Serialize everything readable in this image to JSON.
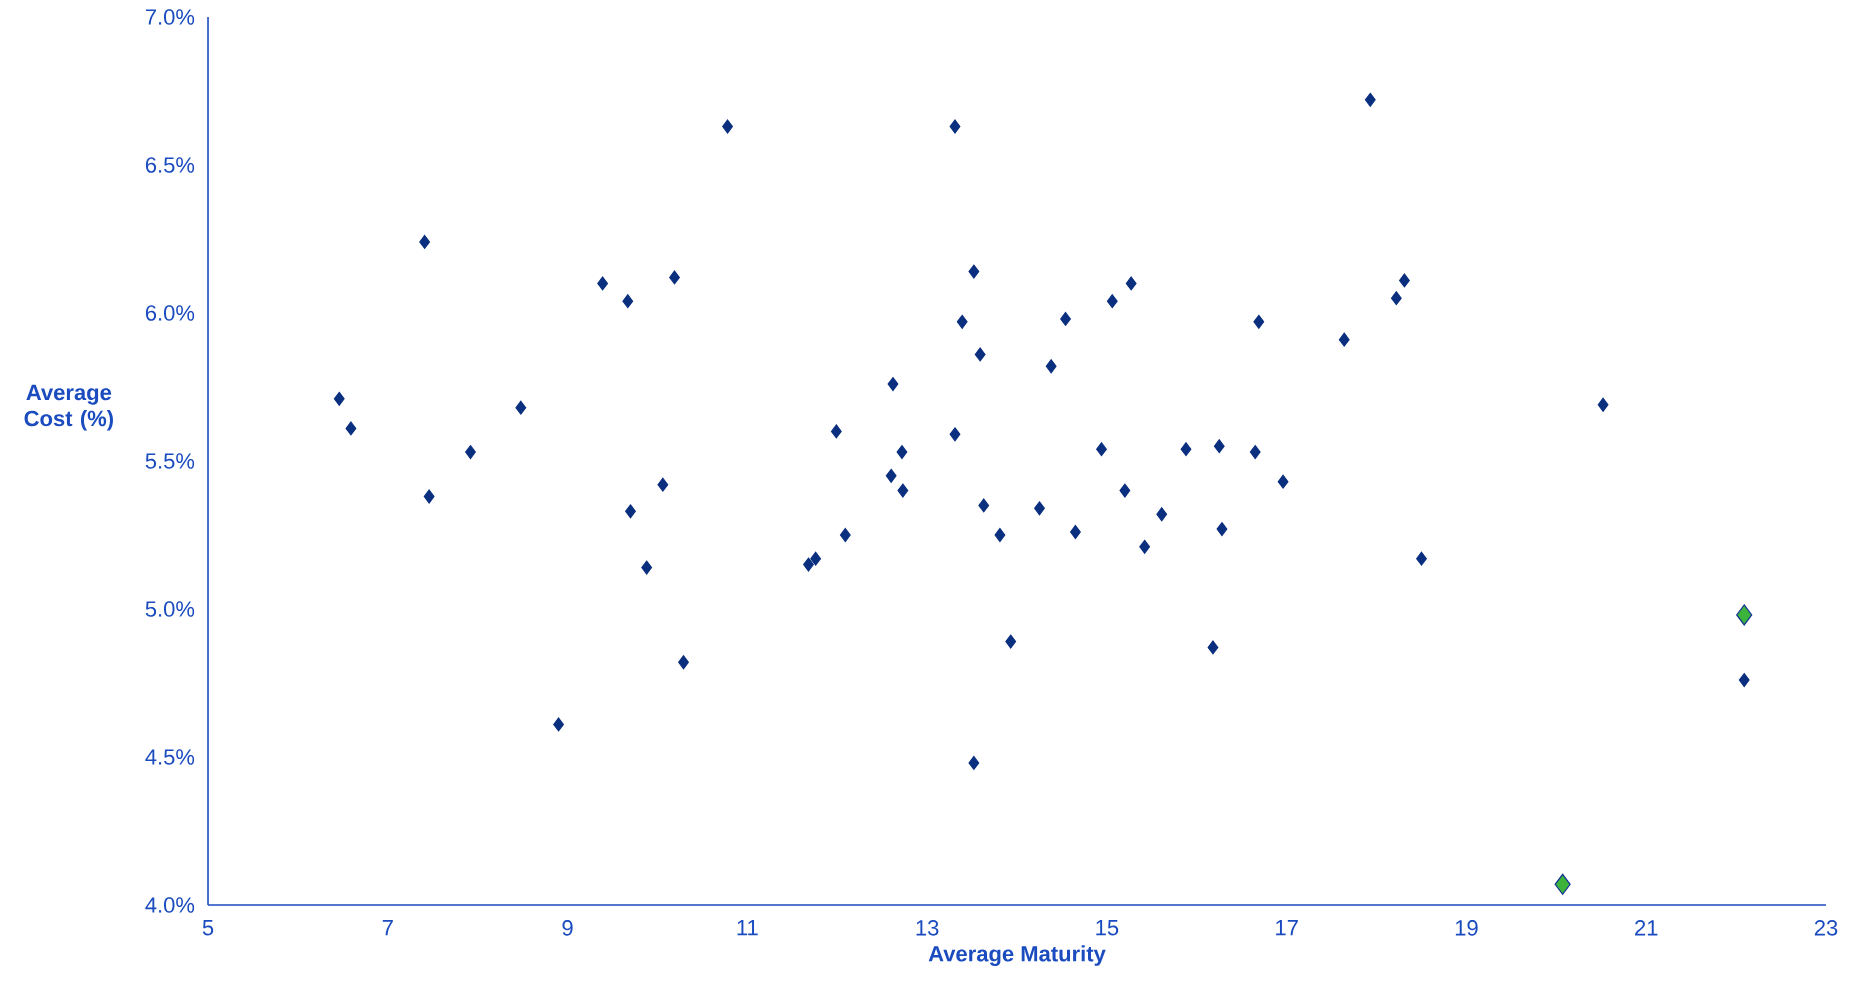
{
  "chart_data": {
    "type": "scatter",
    "xlabel": "Average Maturity",
    "ylabel": "Average Cost (%)",
    "marker": "diamond",
    "xlim": [
      5,
      23
    ],
    "ylim": [
      4.0,
      7.0
    ],
    "xticks": [
      5,
      7,
      9,
      11,
      13,
      15,
      17,
      19,
      21,
      23
    ],
    "yticks": [
      {
        "value": 4.0,
        "label": "4.0%"
      },
      {
        "value": 4.5,
        "label": "4.5%"
      },
      {
        "value": 5.0,
        "label": "5.0%"
      },
      {
        "value": 5.5,
        "label": "5.5%"
      },
      {
        "value": 6.0,
        "label": "6.0%"
      },
      {
        "value": 6.5,
        "label": "6.5%"
      },
      {
        "value": 7.0,
        "label": "7.0%"
      }
    ],
    "series": [
      {
        "color": "#0a2f7f",
        "x": [
          6.46,
          6.59,
          7.41,
          7.46,
          7.92,
          8.48,
          8.9,
          9.39,
          9.67,
          9.7,
          9.88,
          10.06,
          10.19,
          10.29,
          10.78,
          11.68,
          11.76,
          11.99,
          12.09,
          12.6,
          12.62,
          12.72,
          12.73,
          13.31,
          13.31,
          13.39,
          13.52,
          13.52,
          13.59,
          13.63,
          13.81,
          13.93,
          14.25,
          14.38,
          14.54,
          14.65,
          14.94,
          15.06,
          15.2,
          15.27,
          15.42,
          15.61,
          15.88,
          16.18,
          16.25,
          16.28,
          16.65,
          16.69,
          16.96,
          17.64,
          17.93,
          18.22,
          18.31,
          18.5,
          20.52,
          22.09
        ],
        "values": [
          5.71,
          5.61,
          6.24,
          5.38,
          5.53,
          5.68,
          4.61,
          6.1,
          6.04,
          5.33,
          5.14,
          5.42,
          6.12,
          4.82,
          6.63,
          5.15,
          5.17,
          5.6,
          5.25,
          5.45,
          5.76,
          5.53,
          5.4,
          5.59,
          6.63,
          5.97,
          6.14,
          4.48,
          5.86,
          5.35,
          5.25,
          4.89,
          5.34,
          5.82,
          5.98,
          5.26,
          5.54,
          6.04,
          5.4,
          6.1,
          5.21,
          5.32,
          5.54,
          4.87,
          5.55,
          5.27,
          5.53,
          5.97,
          5.43,
          5.91,
          6.72,
          6.05,
          6.11,
          5.17,
          5.69,
          4.76
        ]
      },
      {
        "color": "#3cb43c",
        "x": [
          22.09,
          20.07
        ],
        "values": [
          4.98,
          4.07
        ]
      }
    ]
  }
}
